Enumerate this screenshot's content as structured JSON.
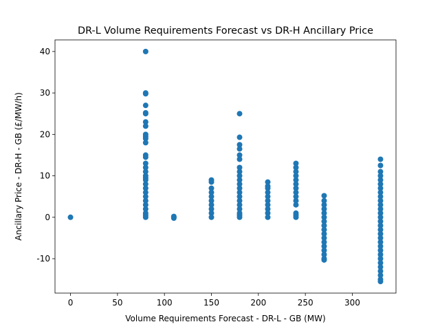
{
  "chart_data": {
    "type": "scatter",
    "title": "DR-L Volume Requirements Forecast vs DR-H Ancillary Price",
    "x_label": "Volume Requirements Forecast - DR-L - GB (MW)",
    "y_label": "Ancillary Price - DR-H - GB (£/MW/h)",
    "color": "#1f77b4",
    "x": [
      0,
      80,
      80,
      80,
      80,
      80,
      80,
      80,
      80,
      80,
      80,
      80,
      80,
      80,
      80,
      80,
      80,
      80,
      80,
      80,
      80,
      80,
      80,
      80,
      80,
      80,
      80,
      80,
      80,
      80,
      80,
      110,
      110,
      110,
      150,
      150,
      150,
      150,
      150,
      150,
      150,
      150,
      150,
      150,
      180,
      180,
      180,
      180,
      180,
      180,
      180,
      180,
      180,
      180,
      180,
      180,
      180,
      180,
      180,
      180,
      180,
      180,
      180,
      180,
      210,
      210,
      210,
      210,
      210,
      210,
      210,
      210,
      210,
      210,
      240,
      240,
      240,
      240,
      240,
      240,
      240,
      240,
      240,
      240,
      240,
      240,
      240,
      240,
      270,
      270,
      270,
      270,
      270,
      270,
      270,
      270,
      270,
      270,
      270,
      270,
      270,
      270,
      270,
      270,
      270,
      330,
      330,
      330,
      330,
      330,
      330,
      330,
      330,
      330,
      330,
      330,
      330,
      330,
      330,
      330,
      330,
      330,
      330,
      330,
      330,
      330,
      330,
      330,
      330,
      330,
      330,
      330,
      330,
      330,
      330
    ],
    "values": [
      0,
      40,
      30,
      29.8,
      27,
      25,
      25.2,
      23,
      22,
      20,
      19.5,
      19,
      18,
      15,
      14.5,
      13,
      12,
      11,
      10,
      9.5,
      9,
      8,
      7,
      6,
      5,
      4,
      3,
      2,
      1,
      0.5,
      0,
      0,
      0.2,
      -0.2,
      9,
      8.5,
      7,
      6,
      5,
      4,
      3,
      2,
      1,
      0,
      25,
      19.3,
      17.5,
      16.5,
      15,
      14,
      12,
      11,
      10,
      9,
      8,
      7,
      6,
      5,
      4,
      3,
      2,
      1,
      0.5,
      0,
      8.5,
      7.5,
      7,
      6,
      5,
      4,
      3,
      2,
      1,
      0,
      13,
      12,
      11,
      10,
      9,
      8,
      7,
      6,
      5,
      4,
      3,
      1,
      0.5,
      0,
      5.2,
      4,
      3,
      2,
      1,
      0,
      -1,
      -2,
      -3,
      -4,
      -5,
      -6,
      -7,
      -8,
      -9,
      -10,
      -10.3,
      14,
      12.5,
      11,
      10,
      9,
      8,
      7,
      6,
      5,
      4,
      3,
      2,
      1,
      0,
      -1,
      -2,
      -3,
      -4,
      -5,
      -6,
      -7,
      -8,
      -9,
      -10,
      -11,
      -12,
      -13,
      -14,
      -15,
      -15.5
    ],
    "xlim": [
      -16.5,
      346.5
    ],
    "ylim": [
      -18.3,
      42.8
    ],
    "xticks": [
      0,
      50,
      100,
      150,
      200,
      250,
      300
    ],
    "yticks": [
      -10,
      0,
      10,
      20,
      30,
      40
    ]
  }
}
